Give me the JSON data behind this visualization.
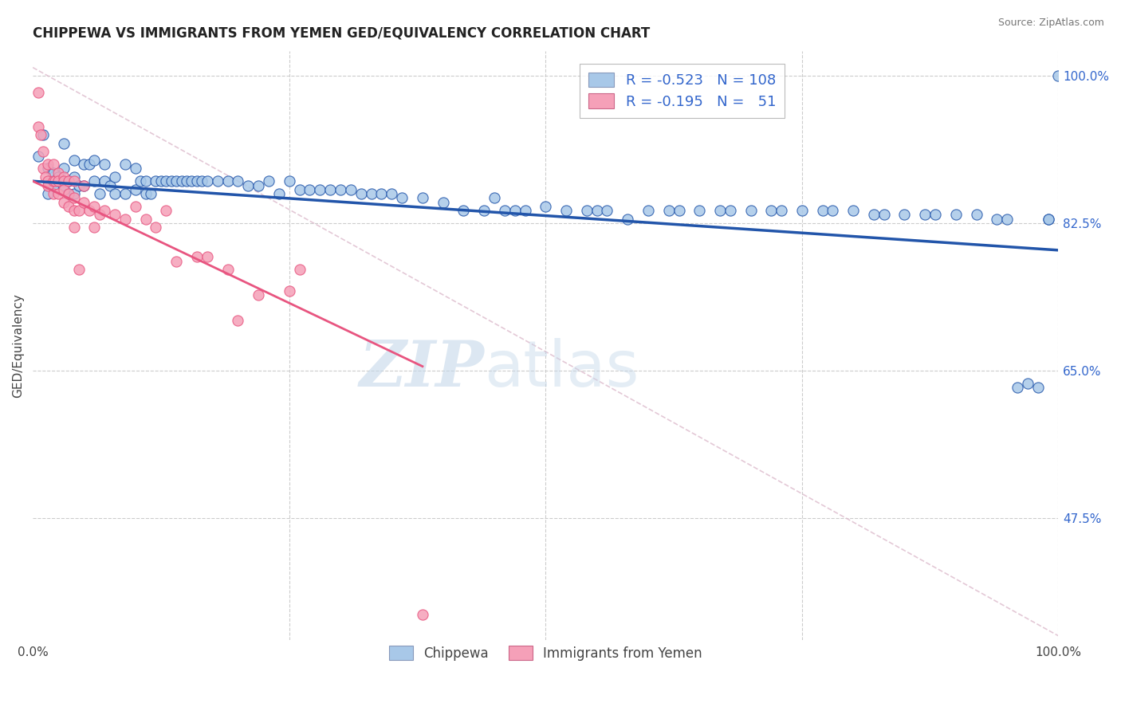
{
  "title": "CHIPPEWA VS IMMIGRANTS FROM YEMEN GED/EQUIVALENCY CORRELATION CHART",
  "source": "Source: ZipAtlas.com",
  "ylabel": "GED/Equivalency",
  "xlim": [
    0.0,
    1.0
  ],
  "ylim": [
    0.33,
    1.03
  ],
  "xtick_labels": [
    "0.0%",
    "100.0%"
  ],
  "ytick_labels": [
    "47.5%",
    "65.0%",
    "82.5%",
    "100.0%"
  ],
  "ytick_positions": [
    0.475,
    0.65,
    0.825,
    1.0
  ],
  "legend_R1": "R = -0.523",
  "legend_N1": "N = 108",
  "legend_R2": "R = -0.195",
  "legend_N2": "N =  51",
  "legend_label1": "Chippewa",
  "legend_label2": "Immigrants from Yemen",
  "color_blue": "#a8c8e8",
  "color_blue_line": "#2255aa",
  "color_pink": "#f5a0b8",
  "color_pink_line": "#e85580",
  "color_dashed": "#ddbbcc",
  "watermark_zip": "ZIP",
  "watermark_atlas": "atlas",
  "blue_trend_x0": 0.0,
  "blue_trend_y0": 0.875,
  "blue_trend_x1": 1.0,
  "blue_trend_y1": 0.793,
  "pink_trend_x0": 0.0,
  "pink_trend_y0": 0.875,
  "pink_trend_x1": 0.38,
  "pink_trend_y1": 0.655,
  "blue_scatter_x": [
    0.005,
    0.01,
    0.015,
    0.015,
    0.02,
    0.02,
    0.025,
    0.025,
    0.03,
    0.03,
    0.03,
    0.035,
    0.035,
    0.04,
    0.04,
    0.04,
    0.045,
    0.05,
    0.05,
    0.055,
    0.06,
    0.06,
    0.065,
    0.07,
    0.07,
    0.075,
    0.08,
    0.08,
    0.09,
    0.09,
    0.1,
    0.1,
    0.105,
    0.11,
    0.11,
    0.115,
    0.12,
    0.125,
    0.13,
    0.135,
    0.14,
    0.145,
    0.15,
    0.155,
    0.16,
    0.165,
    0.17,
    0.18,
    0.19,
    0.2,
    0.21,
    0.22,
    0.23,
    0.24,
    0.25,
    0.26,
    0.27,
    0.28,
    0.29,
    0.3,
    0.31,
    0.32,
    0.33,
    0.34,
    0.35,
    0.36,
    0.38,
    0.4,
    0.42,
    0.44,
    0.45,
    0.46,
    0.47,
    0.48,
    0.5,
    0.52,
    0.54,
    0.55,
    0.56,
    0.58,
    0.6,
    0.62,
    0.63,
    0.65,
    0.67,
    0.68,
    0.7,
    0.72,
    0.73,
    0.75,
    0.77,
    0.78,
    0.8,
    0.82,
    0.83,
    0.85,
    0.87,
    0.88,
    0.9,
    0.92,
    0.94,
    0.95,
    0.96,
    0.97,
    0.98,
    0.99,
    0.99,
    1.0
  ],
  "blue_scatter_y": [
    0.905,
    0.93,
    0.89,
    0.86,
    0.885,
    0.87,
    0.88,
    0.875,
    0.92,
    0.89,
    0.87,
    0.875,
    0.86,
    0.9,
    0.88,
    0.86,
    0.87,
    0.895,
    0.87,
    0.895,
    0.9,
    0.875,
    0.86,
    0.895,
    0.875,
    0.87,
    0.88,
    0.86,
    0.895,
    0.86,
    0.89,
    0.865,
    0.875,
    0.875,
    0.86,
    0.86,
    0.875,
    0.875,
    0.875,
    0.875,
    0.875,
    0.875,
    0.875,
    0.875,
    0.875,
    0.875,
    0.875,
    0.875,
    0.875,
    0.875,
    0.87,
    0.87,
    0.875,
    0.86,
    0.875,
    0.865,
    0.865,
    0.865,
    0.865,
    0.865,
    0.865,
    0.86,
    0.86,
    0.86,
    0.86,
    0.855,
    0.855,
    0.85,
    0.84,
    0.84,
    0.855,
    0.84,
    0.84,
    0.84,
    0.845,
    0.84,
    0.84,
    0.84,
    0.84,
    0.83,
    0.84,
    0.84,
    0.84,
    0.84,
    0.84,
    0.84,
    0.84,
    0.84,
    0.84,
    0.84,
    0.84,
    0.84,
    0.84,
    0.835,
    0.835,
    0.835,
    0.835,
    0.835,
    0.835,
    0.835,
    0.83,
    0.83,
    0.63,
    0.635,
    0.63,
    0.83,
    0.83,
    1.0
  ],
  "pink_scatter_x": [
    0.005,
    0.005,
    0.008,
    0.01,
    0.01,
    0.012,
    0.015,
    0.015,
    0.015,
    0.02,
    0.02,
    0.02,
    0.022,
    0.025,
    0.025,
    0.025,
    0.03,
    0.03,
    0.03,
    0.03,
    0.035,
    0.035,
    0.035,
    0.04,
    0.04,
    0.04,
    0.04,
    0.045,
    0.045,
    0.05,
    0.05,
    0.055,
    0.06,
    0.06,
    0.065,
    0.07,
    0.08,
    0.09,
    0.1,
    0.11,
    0.12,
    0.13,
    0.14,
    0.16,
    0.17,
    0.19,
    0.2,
    0.22,
    0.25,
    0.26,
    0.38
  ],
  "pink_scatter_y": [
    0.98,
    0.94,
    0.93,
    0.91,
    0.89,
    0.88,
    0.895,
    0.875,
    0.87,
    0.895,
    0.875,
    0.86,
    0.875,
    0.885,
    0.875,
    0.86,
    0.88,
    0.875,
    0.865,
    0.85,
    0.875,
    0.86,
    0.845,
    0.875,
    0.855,
    0.84,
    0.82,
    0.84,
    0.77,
    0.87,
    0.85,
    0.84,
    0.845,
    0.82,
    0.835,
    0.84,
    0.835,
    0.83,
    0.845,
    0.83,
    0.82,
    0.84,
    0.78,
    0.785,
    0.785,
    0.77,
    0.71,
    0.74,
    0.745,
    0.77,
    0.36
  ]
}
